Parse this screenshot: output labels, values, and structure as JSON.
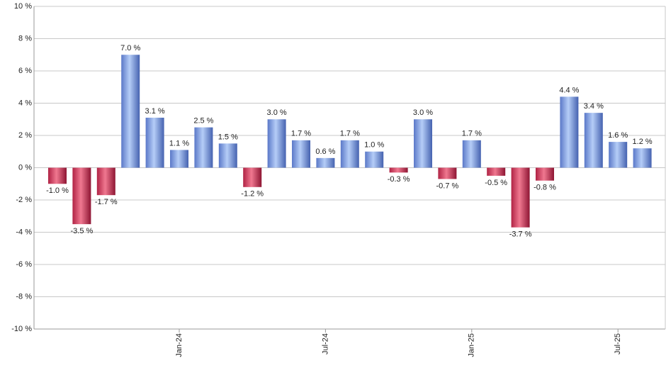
{
  "chart_data": {
    "type": "bar",
    "categories": [
      null,
      null,
      null,
      null,
      null,
      "Jan-24",
      null,
      null,
      null,
      null,
      null,
      "Jul-24",
      null,
      null,
      null,
      null,
      null,
      "Jan-25",
      null,
      null,
      null,
      null,
      null,
      "Jul-25",
      null
    ],
    "values": [
      -1.0,
      -3.5,
      -1.7,
      7.0,
      3.1,
      1.1,
      2.5,
      1.5,
      -1.2,
      3.0,
      1.7,
      0.6,
      1.7,
      1.0,
      -0.3,
      3.0,
      -0.7,
      1.7,
      -0.5,
      -3.7,
      -0.8,
      4.4,
      3.4,
      1.6,
      1.2
    ],
    "value_labels": [
      "-1.0 %",
      "-3.5 %",
      "-1.7 %",
      "7.0 %",
      "3.1 %",
      "1.1 %",
      "2.5 %",
      "1.5 %",
      "-1.2 %",
      "3.0 %",
      "1.7 %",
      "0.6 %",
      "1.7 %",
      "1.0 %",
      "-0.3 %",
      "3.0 %",
      "-0.7 %",
      "1.7 %",
      "-0.5 %",
      "-3.7 %",
      "-0.8 %",
      "4.4 %",
      "3.4 %",
      "1.6 %",
      "1.2 %"
    ],
    "positive_color": "#7f9fe6",
    "negative_color": "#c8304f",
    "ylim": [
      -10,
      10
    ],
    "yticks": [
      {
        "value": -10,
        "label": "-10 %"
      },
      {
        "value": -8,
        "label": "-8 %"
      },
      {
        "value": -6,
        "label": "-6 %"
      },
      {
        "value": -4,
        "label": "-4 %"
      },
      {
        "value": -2,
        "label": "-2 %"
      },
      {
        "value": 0,
        "label": "0 %"
      },
      {
        "value": 2,
        "label": "2 %"
      },
      {
        "value": 4,
        "label": "4 %"
      },
      {
        "value": 6,
        "label": "6 %"
      },
      {
        "value": 8,
        "label": "8 %"
      },
      {
        "value": 10,
        "label": "10 %"
      }
    ],
    "grid": true
  }
}
